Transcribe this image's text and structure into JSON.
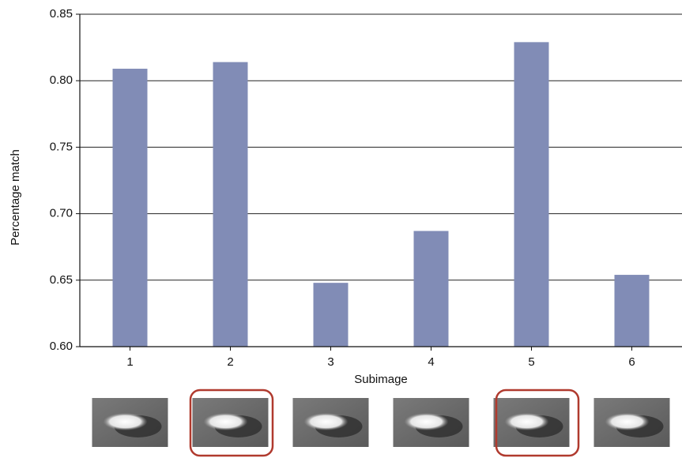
{
  "chart_data": {
    "type": "bar",
    "x_label": "Subimage",
    "y_label": "Percentage match",
    "categories": [
      "1",
      "2",
      "3",
      "4",
      "5",
      "6"
    ],
    "values": [
      0.809,
      0.814,
      0.648,
      0.687,
      0.829,
      0.654
    ],
    "color": "#818cb6",
    "ylim": [
      0.6,
      0.85
    ],
    "yticks": [
      {
        "value": 0.6,
        "label": "0.60"
      },
      {
        "value": 0.65,
        "label": "0.65"
      },
      {
        "value": 0.7,
        "label": "0.70"
      },
      0.75,
      {
        "value": 0.8,
        "label": "0.80"
      },
      0.85
    ],
    "grid": true
  }
}
